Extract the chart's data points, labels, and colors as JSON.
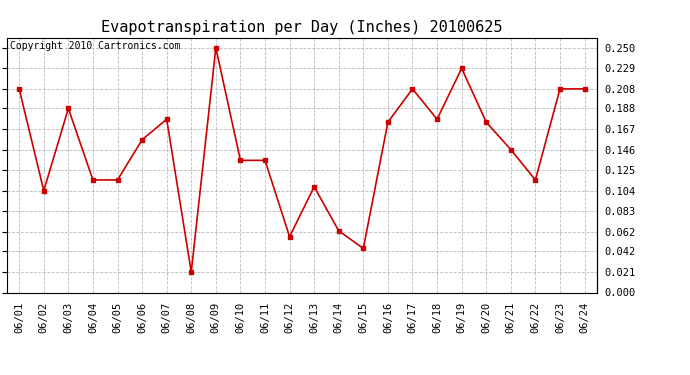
{
  "title": "Evapotranspiration per Day (Inches) 20100625",
  "copyright": "Copyright 2010 Cartronics.com",
  "dates": [
    "06/01",
    "06/02",
    "06/03",
    "06/04",
    "06/05",
    "06/06",
    "06/07",
    "06/08",
    "06/09",
    "06/10",
    "06/11",
    "06/12",
    "06/13",
    "06/14",
    "06/15",
    "06/16",
    "06/17",
    "06/18",
    "06/19",
    "06/20",
    "06/21",
    "06/22",
    "06/23",
    "06/24"
  ],
  "values": [
    0.208,
    0.104,
    0.188,
    0.115,
    0.115,
    0.156,
    0.177,
    0.021,
    0.25,
    0.135,
    0.135,
    0.057,
    0.108,
    0.063,
    0.045,
    0.174,
    0.208,
    0.177,
    0.229,
    0.174,
    0.146,
    0.115,
    0.208,
    0.208
  ],
  "line_color": "#cc0000",
  "marker": "s",
  "marker_size": 2.5,
  "line_width": 1.2,
  "ylim": [
    0.0,
    0.2605
  ],
  "yticks": [
    0.0,
    0.021,
    0.042,
    0.062,
    0.083,
    0.104,
    0.125,
    0.146,
    0.167,
    0.188,
    0.208,
    0.229,
    0.25
  ],
  "bg_color": "#ffffff",
  "grid_color": "#aaaaaa",
  "title_fontsize": 11,
  "tick_fontsize": 7.5,
  "copyright_fontsize": 7
}
